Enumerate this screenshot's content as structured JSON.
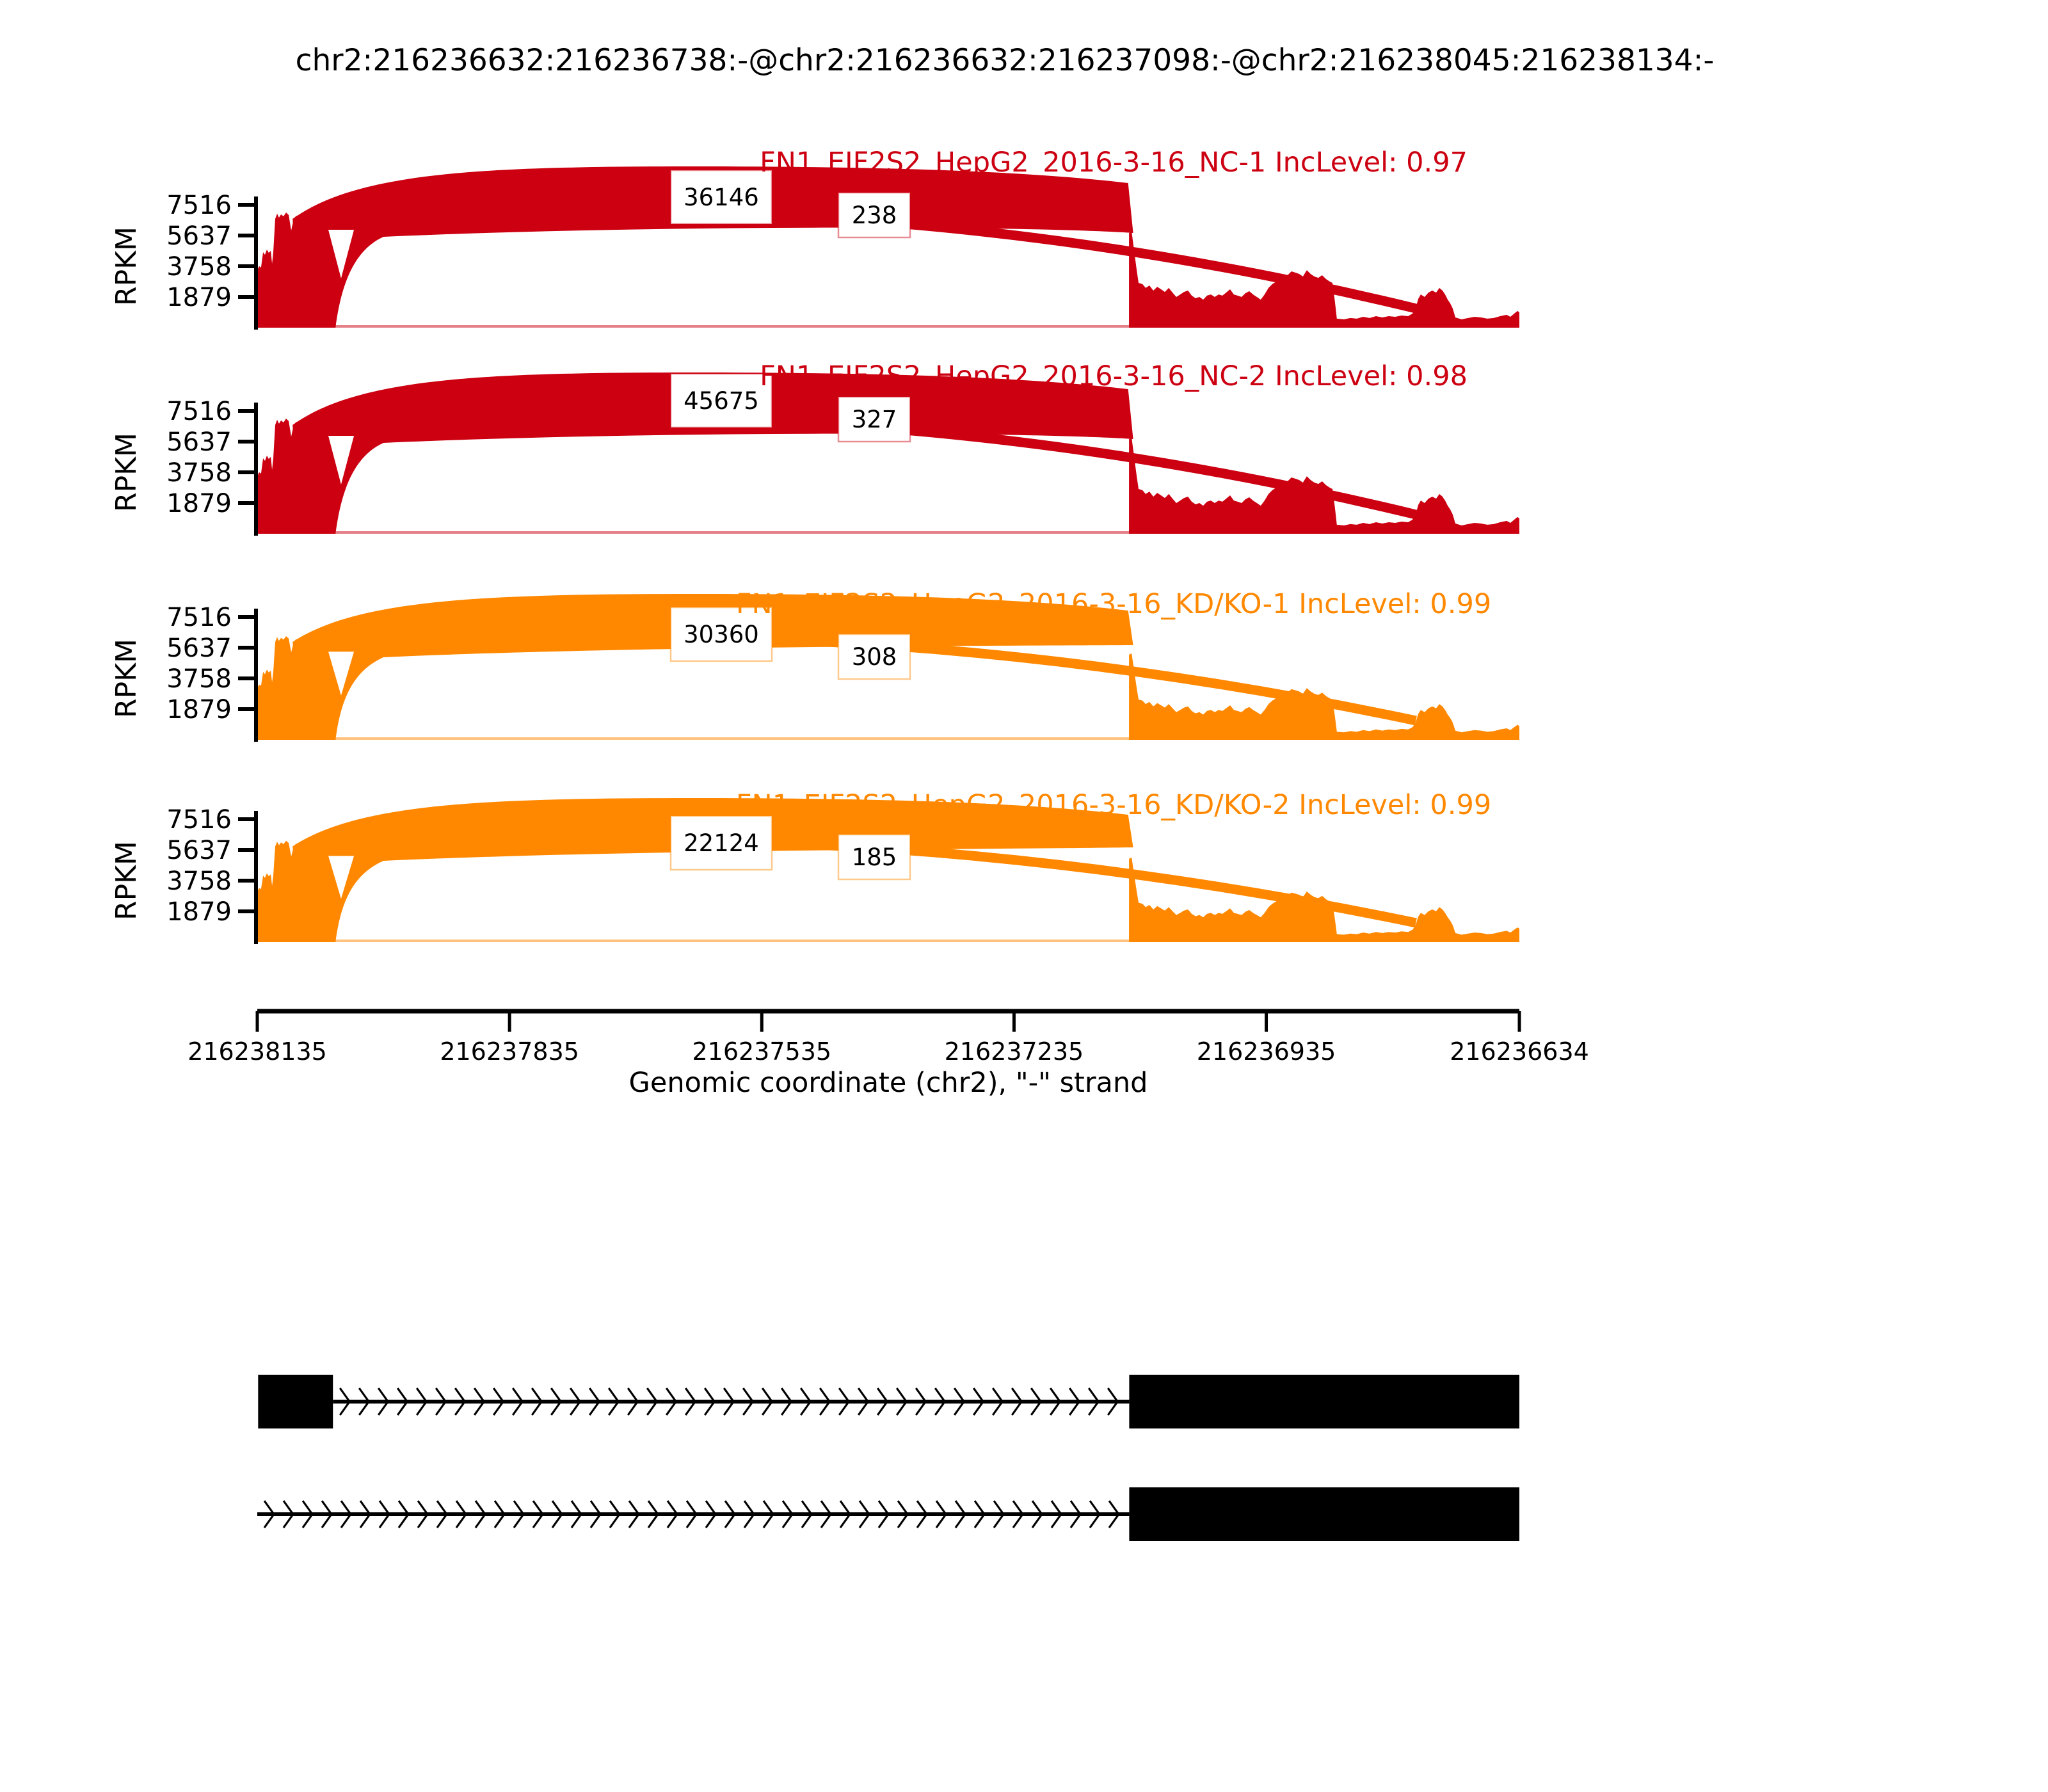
{
  "title": "chr2:216236632:216236738:-@chr2:216236632:216237098:-@chr2:216238045:216238134:-",
  "y_axis": {
    "label": "RPKM",
    "ticks": [
      "7516",
      "5637",
      "3758",
      "1879"
    ]
  },
  "x_axis": {
    "label": "Genomic coordinate (chr2), \"-\" strand",
    "tick_labels": [
      "216238135",
      "216237835",
      "216237535",
      "216237235",
      "216236935",
      "216236634"
    ]
  },
  "chart_data": {
    "type": "area",
    "subtype": "sashimi-plot",
    "region": {
      "chrom": "chr2",
      "strand": "-",
      "xlim_left_bp": 216238135,
      "xlim_right_bp": 216236634
    },
    "event_exons": {
      "flanking_exon_bp": [
        216238045,
        216238134
      ],
      "long_exon_bp": [
        216236632,
        216237098
      ],
      "short_exon_bp": [
        216236632,
        216236738
      ]
    },
    "rpkm_ticks": [
      1879,
      3758,
      5637,
      7516
    ],
    "x_tick_bp": [
      216238135,
      216237835,
      216237535,
      216237235,
      216236935,
      216236634
    ],
    "tracks": [
      {
        "sample_label": "FN1_EIF2S2_HepG2_2016-3-16_NC-1 IncLevel: 0.97",
        "inc_level": 0.97,
        "color": "#CC0011",
        "junction_counts": [
          36146,
          238
        ],
        "render": {
          "arc_outer": 252,
          "arc_inner": 160,
          "arc2_apex": 215,
          "box1": -204,
          "box2": -176,
          "title": -244,
          "scale": 1.0
        }
      },
      {
        "sample_label": "FN1_EIF2S2_HepG2_2016-3-16_NC-2 IncLevel: 0.98",
        "inc_level": 0.98,
        "color": "#CC0011",
        "junction_counts": [
          45675,
          327
        ],
        "render": {
          "arc_outer": 252,
          "arc_inner": 160,
          "arc2_apex": 215,
          "box1": -208,
          "box2": -179,
          "title": -232,
          "scale": 1.0
        }
      },
      {
        "sample_label": "FN1_EIF2S2_HepG2_2016-3-16_KD/KO-1 IncLevel: 0.99",
        "inc_level": 0.99,
        "color": "#FF8800",
        "junction_counts": [
          30360,
          308
        ],
        "render": {
          "arc_outer": 228,
          "arc_inner": 147,
          "arc2_apex": 192,
          "box1": -165,
          "box2": -130,
          "title": -198,
          "scale": 0.9
        }
      },
      {
        "sample_label": "FN1_EIF2S2_HepG2_2016-3-16_KD/KO-2 IncLevel: 0.99",
        "inc_level": 0.99,
        "color": "#FF8800",
        "junction_counts": [
          22124,
          185
        ],
        "render": {
          "arc_outer": 225,
          "arc_inner": 145,
          "arc2_apex": 190,
          "box1": -155,
          "box2": -133,
          "title": -200,
          "scale": 0.88
        }
      }
    ],
    "coverage_estimate_rpkm": {
      "left_exon": [
        [
          0.0005,
          3600
        ],
        [
          0.0015,
          3760
        ],
        [
          0.003,
          3680
        ],
        [
          0.0046,
          4620
        ],
        [
          0.0061,
          4460
        ],
        [
          0.0076,
          4780
        ],
        [
          0.0091,
          4580
        ],
        [
          0.0107,
          4700
        ],
        [
          0.0117,
          3915
        ],
        [
          0.0127,
          4620
        ],
        [
          0.0142,
          6655
        ],
        [
          0.0157,
          6970
        ],
        [
          0.0172,
          6735
        ],
        [
          0.0188,
          6930
        ],
        [
          0.0208,
          6810
        ],
        [
          0.0228,
          7045
        ],
        [
          0.0249,
          6890
        ],
        [
          0.0269,
          5950
        ],
        [
          0.0289,
          6655
        ],
        [
          0.0309,
          6850
        ],
        [
          0.0335,
          6735
        ],
        [
          0.036,
          6970
        ],
        [
          0.0396,
          7045
        ],
        [
          0.0436,
          6970
        ],
        [
          0.0477,
          7085
        ],
        [
          0.0527,
          7045
        ],
        [
          0.0588,
          7010
        ]
      ],
      "right_exon": [
        [
          0.6907,
          5790
        ],
        [
          0.6928,
          5870
        ],
        [
          0.6948,
          4700
        ],
        [
          0.6968,
          3520
        ],
        [
          0.6983,
          2740
        ],
        [
          0.7014,
          2660
        ],
        [
          0.7039,
          2430
        ],
        [
          0.7069,
          2580
        ],
        [
          0.71,
          2270
        ],
        [
          0.7131,
          2500
        ],
        [
          0.7161,
          2350
        ],
        [
          0.7191,
          2190
        ],
        [
          0.7222,
          2430
        ],
        [
          0.7252,
          2150
        ],
        [
          0.7282,
          1880
        ],
        [
          0.7313,
          2030
        ],
        [
          0.7343,
          2190
        ],
        [
          0.7374,
          2270
        ],
        [
          0.7404,
          1960
        ],
        [
          0.7434,
          1800
        ],
        [
          0.7465,
          1880
        ],
        [
          0.7495,
          1720
        ],
        [
          0.7525,
          1960
        ],
        [
          0.7556,
          2030
        ],
        [
          0.7586,
          1880
        ],
        [
          0.7617,
          2030
        ],
        [
          0.7647,
          1960
        ],
        [
          0.7677,
          2150
        ],
        [
          0.7708,
          2350
        ],
        [
          0.7738,
          2030
        ],
        [
          0.7768,
          1960
        ],
        [
          0.7799,
          1880
        ],
        [
          0.7829,
          2110
        ],
        [
          0.786,
          2230
        ],
        [
          0.789,
          2030
        ],
        [
          0.792,
          1880
        ],
        [
          0.7951,
          1720
        ],
        [
          0.7981,
          2030
        ],
        [
          0.8012,
          2430
        ],
        [
          0.8042,
          2660
        ],
        [
          0.8072,
          2820
        ],
        [
          0.8103,
          3050
        ],
        [
          0.8133,
          2900
        ],
        [
          0.8164,
          3210
        ],
        [
          0.8194,
          3445
        ],
        [
          0.8224,
          3370
        ],
        [
          0.8255,
          3290
        ],
        [
          0.8285,
          3130
        ],
        [
          0.8316,
          3520
        ],
        [
          0.8346,
          3290
        ],
        [
          0.8376,
          3130
        ],
        [
          0.8407,
          3050
        ],
        [
          0.8437,
          3210
        ],
        [
          0.8468,
          2975
        ],
        [
          0.8498,
          2820
        ],
        [
          0.8519,
          2740
        ],
        [
          0.8539,
          1570
        ],
        [
          0.8554,
          550
        ],
        [
          0.861,
          510
        ],
        [
          0.8661,
          590
        ],
        [
          0.8712,
          550
        ],
        [
          0.8762,
          665
        ],
        [
          0.8813,
          590
        ],
        [
          0.8864,
          705
        ],
        [
          0.8915,
          625
        ],
        [
          0.8965,
          705
        ],
        [
          0.9016,
          665
        ],
        [
          0.9067,
          745
        ],
        [
          0.9118,
          705
        ],
        [
          0.9153,
          860
        ],
        [
          0.9178,
          1175
        ],
        [
          0.9199,
          1760
        ],
        [
          0.9219,
          2030
        ],
        [
          0.9249,
          1880
        ],
        [
          0.928,
          2150
        ],
        [
          0.931,
          2270
        ],
        [
          0.9341,
          2150
        ],
        [
          0.9366,
          2430
        ],
        [
          0.9391,
          2270
        ],
        [
          0.9412,
          2030
        ],
        [
          0.9432,
          1720
        ],
        [
          0.9452,
          1490
        ],
        [
          0.9472,
          1175
        ],
        [
          0.9493,
          625
        ],
        [
          0.9543,
          510
        ],
        [
          0.9594,
          590
        ],
        [
          0.9645,
          665
        ],
        [
          0.9696,
          625
        ],
        [
          0.9746,
          550
        ],
        [
          0.9797,
          590
        ],
        [
          0.9848,
          705
        ],
        [
          0.9899,
          785
        ],
        [
          0.9929,
          665
        ],
        [
          0.9959,
          860
        ],
        [
          0.9985,
          1020
        ],
        [
          1.0,
          940
        ]
      ]
    },
    "transcripts": [
      {
        "exons_bp": [
          [
            216238045,
            216238134
          ],
          [
            216236632,
            216237098
          ]
        ],
        "intron_bp": [
          216237098,
          216238045
        ]
      },
      {
        "exons_bp": [
          [
            216236632,
            216237098
          ]
        ],
        "intron_bp": [
          216237098,
          216238135
        ]
      }
    ]
  }
}
